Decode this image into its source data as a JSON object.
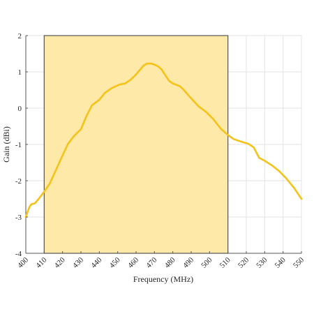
{
  "chart_data": {
    "type": "line",
    "title": "",
    "xlabel": "Frequency (MHz)",
    "ylabel": "Gain (dBi)",
    "xlim": [
      400,
      550
    ],
    "ylim": [
      -4,
      2
    ],
    "x_ticks": [
      400,
      410,
      420,
      430,
      440,
      450,
      460,
      470,
      480,
      490,
      500,
      510,
      520,
      530,
      540,
      550
    ],
    "y_ticks": [
      -4,
      -3,
      -2,
      -1,
      0,
      1,
      2
    ],
    "x_tick_labels": [
      "400",
      "410",
      "420",
      "430",
      "440",
      "450",
      "460",
      "470",
      "480",
      "490",
      "500",
      "510",
      "520",
      "530",
      "540",
      "550"
    ],
    "y_tick_labels": [
      "-4",
      "-3",
      "-2",
      "-1",
      "0",
      "1",
      "2"
    ],
    "grid": true,
    "highlight_band": {
      "x_start": 410,
      "x_end": 510,
      "color": "#ffe9a8",
      "edge_color": "#555555"
    },
    "series": [
      {
        "color": "#f5c218",
        "x": [
          400,
          401,
          402,
          403,
          405,
          407,
          410,
          413,
          416,
          420,
          423,
          426,
          430,
          433,
          436,
          440,
          443,
          447,
          451,
          454,
          457,
          460,
          462,
          464,
          466,
          468,
          470,
          472,
          474,
          476,
          478,
          480,
          484,
          486,
          490,
          494,
          498,
          502,
          506,
          510,
          513,
          517,
          521,
          524,
          527,
          530,
          534,
          538,
          542,
          546,
          550
        ],
        "y": [
          -3.0,
          -2.85,
          -2.72,
          -2.65,
          -2.62,
          -2.5,
          -2.3,
          -2.08,
          -1.75,
          -1.3,
          -0.98,
          -0.78,
          -0.58,
          -0.22,
          0.08,
          0.23,
          0.42,
          0.56,
          0.65,
          0.68,
          0.78,
          0.93,
          1.05,
          1.17,
          1.23,
          1.23,
          1.2,
          1.15,
          1.06,
          0.9,
          0.75,
          0.68,
          0.6,
          0.5,
          0.27,
          0.05,
          -0.1,
          -0.3,
          -0.56,
          -0.74,
          -0.85,
          -0.92,
          -0.98,
          -1.08,
          -1.37,
          -1.45,
          -1.58,
          -1.74,
          -1.95,
          -2.2,
          -2.5
        ]
      }
    ]
  }
}
